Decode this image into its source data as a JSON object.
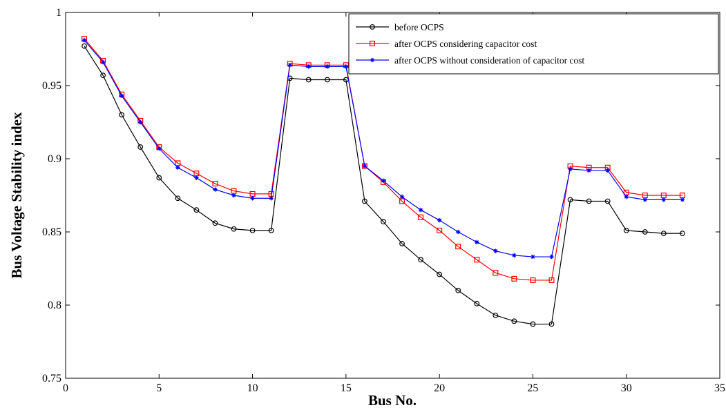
{
  "chart_data": {
    "type": "line",
    "title": "",
    "xlabel": "Bus No.",
    "ylabel": "Bus Voltage Stability index",
    "xlim": [
      0,
      35
    ],
    "ylim": [
      0.75,
      1
    ],
    "xticks": [
      0,
      5,
      10,
      15,
      20,
      25,
      30,
      35
    ],
    "yticks": [
      0.75,
      0.8,
      0.85,
      0.9,
      0.95,
      1
    ],
    "xtick_labels": [
      "0",
      "5",
      "10",
      "15",
      "20",
      "25",
      "30",
      "35"
    ],
    "ytick_labels": [
      "0.75",
      "0.8",
      "0.85",
      "0.9",
      "0.95",
      "1"
    ],
    "grid": false,
    "legend_position": "top-right",
    "x": [
      1,
      2,
      3,
      4,
      5,
      6,
      7,
      8,
      9,
      10,
      11,
      12,
      13,
      14,
      15,
      16,
      17,
      18,
      19,
      20,
      21,
      22,
      23,
      24,
      25,
      26,
      27,
      28,
      29,
      30,
      31,
      32,
      33
    ],
    "series": [
      {
        "name": "before OCPS",
        "color": "#000000",
        "marker": "circle",
        "values": [
          0.977,
          0.957,
          0.93,
          0.908,
          0.887,
          0.873,
          0.865,
          0.856,
          0.852,
          0.851,
          0.851,
          0.955,
          0.954,
          0.954,
          0.954,
          0.871,
          0.857,
          0.842,
          0.831,
          0.821,
          0.81,
          0.801,
          0.793,
          0.789,
          0.787,
          0.787,
          0.872,
          0.871,
          0.871,
          0.851,
          0.85,
          0.849,
          0.849
        ]
      },
      {
        "name": "after OCPS considering capacitor cost",
        "color": "#ff0000",
        "marker": "square",
        "values": [
          0.982,
          0.967,
          0.944,
          0.926,
          0.908,
          0.897,
          0.89,
          0.883,
          0.878,
          0.876,
          0.876,
          0.965,
          0.964,
          0.964,
          0.964,
          0.895,
          0.884,
          0.871,
          0.86,
          0.851,
          0.84,
          0.831,
          0.822,
          0.818,
          0.817,
          0.817,
          0.895,
          0.894,
          0.894,
          0.877,
          0.875,
          0.875,
          0.875
        ]
      },
      {
        "name": "after OCPS without consideration of capacitor cost",
        "color": "#0000ff",
        "marker": "star",
        "values": [
          0.981,
          0.966,
          0.943,
          0.925,
          0.907,
          0.894,
          0.887,
          0.879,
          0.875,
          0.873,
          0.873,
          0.964,
          0.963,
          0.963,
          0.963,
          0.895,
          0.885,
          0.874,
          0.865,
          0.858,
          0.85,
          0.843,
          0.837,
          0.834,
          0.833,
          0.833,
          0.893,
          0.892,
          0.892,
          0.874,
          0.872,
          0.872,
          0.872
        ]
      }
    ]
  }
}
